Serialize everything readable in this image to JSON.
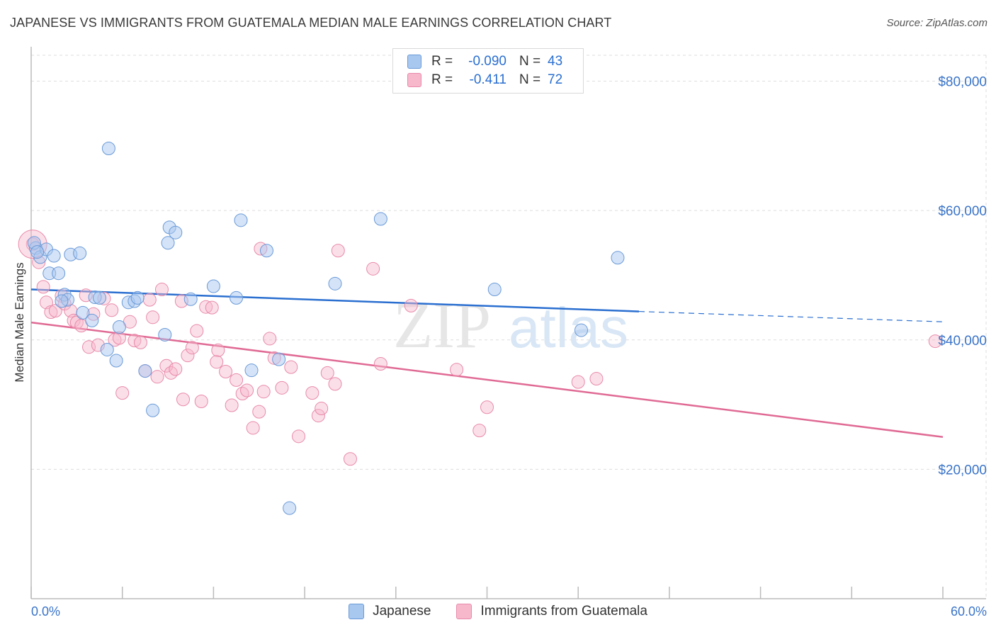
{
  "header": {
    "title": "JAPANESE VS IMMIGRANTS FROM GUATEMALA MEDIAN MALE EARNINGS CORRELATION CHART",
    "source": "Source: ZipAtlas.com"
  },
  "legend": {
    "rows": [
      {
        "r_label": "R =",
        "r_value": "-0.090",
        "n_label": "N =",
        "n_value": "43"
      },
      {
        "r_label": "R =",
        "r_value": "-0.411",
        "n_label": "N =",
        "n_value": "72"
      }
    ]
  },
  "watermark": {
    "part1": "ZIP",
    "part2": "atlas"
  },
  "colors": {
    "japanese_fill": "#a9c8f0",
    "japanese_stroke": "#6a9ad8",
    "japanese_line": "#2a6fd0",
    "guatemala_fill": "#f7b8cc",
    "guatemala_stroke": "#e88aaa",
    "guatemala_line": "#e06a94",
    "axis_text": "#3a74c9",
    "grid": "#dddddd"
  },
  "chart_data": {
    "type": "scatter",
    "title": "JAPANESE VS IMMIGRANTS FROM GUATEMALA MEDIAN MALE EARNINGS CORRELATION CHART",
    "xlabel": "",
    "ylabel": "Median Male Earnings",
    "xlim": [
      0,
      60
    ],
    "ylim": [
      0,
      84000
    ],
    "x_tick_labels": [
      "0.0%",
      "60.0%"
    ],
    "y_ticks": [
      20000,
      40000,
      60000,
      80000
    ],
    "y_tick_labels": [
      "$20,000",
      "$40,000",
      "$60,000",
      "$80,000"
    ],
    "grid": true,
    "legend_position": "top-center",
    "series": [
      {
        "name": "Japanese",
        "r": -0.09,
        "n": 43,
        "trend": {
          "x0": 0,
          "y0": 47800,
          "x1": 40,
          "y1": 44400,
          "dash_to_x": 60,
          "dash_to_y": 42800
        },
        "points": [
          [
            0.3,
            54200
          ],
          [
            0.6,
            52800
          ],
          [
            1.0,
            54000
          ],
          [
            1.2,
            50300
          ],
          [
            1.5,
            53000
          ],
          [
            1.8,
            50300
          ],
          [
            2.2,
            47000
          ],
          [
            2.4,
            46200
          ],
          [
            2.6,
            53200
          ],
          [
            3.2,
            53400
          ],
          [
            3.4,
            44200
          ],
          [
            4.0,
            43000
          ],
          [
            4.2,
            46600
          ],
          [
            4.5,
            46500
          ],
          [
            5.0,
            38500
          ],
          [
            5.1,
            69600
          ],
          [
            5.6,
            36800
          ],
          [
            5.8,
            42000
          ],
          [
            6.4,
            45800
          ],
          [
            6.8,
            46000
          ],
          [
            7.0,
            46500
          ],
          [
            7.5,
            35200
          ],
          [
            8.0,
            29100
          ],
          [
            8.8,
            40800
          ],
          [
            9.0,
            55000
          ],
          [
            9.1,
            57400
          ],
          [
            9.5,
            56600
          ],
          [
            10.5,
            46300
          ],
          [
            12.0,
            48300
          ],
          [
            13.5,
            46500
          ],
          [
            13.8,
            58500
          ],
          [
            14.5,
            35300
          ],
          [
            15.5,
            53800
          ],
          [
            16.3,
            37000
          ],
          [
            17.0,
            14000
          ],
          [
            20.0,
            48700
          ],
          [
            23.0,
            58700
          ],
          [
            30.5,
            47800
          ],
          [
            36.2,
            41500
          ],
          [
            38.6,
            52700
          ],
          [
            0.2,
            55000
          ],
          [
            0.4,
            53600
          ],
          [
            2.0,
            46000
          ]
        ]
      },
      {
        "name": "Immigrants from Guatemala",
        "r": -0.411,
        "n": 72,
        "trend": {
          "x0": 0,
          "y0": 42700,
          "x1": 60,
          "y1": 25000
        },
        "points": [
          [
            0.1,
            54800
          ],
          [
            0.5,
            52000
          ],
          [
            0.8,
            48200
          ],
          [
            1.0,
            45800
          ],
          [
            1.3,
            44300
          ],
          [
            1.6,
            44500
          ],
          [
            2.0,
            46800
          ],
          [
            2.2,
            45600
          ],
          [
            2.6,
            44500
          ],
          [
            2.8,
            43000
          ],
          [
            3.0,
            42700
          ],
          [
            3.3,
            42200
          ],
          [
            3.6,
            46900
          ],
          [
            3.8,
            38900
          ],
          [
            4.1,
            44000
          ],
          [
            4.4,
            39200
          ],
          [
            4.8,
            46400
          ],
          [
            5.3,
            44600
          ],
          [
            5.5,
            40000
          ],
          [
            5.8,
            40300
          ],
          [
            6.0,
            31800
          ],
          [
            6.5,
            42800
          ],
          [
            6.8,
            39900
          ],
          [
            7.2,
            39600
          ],
          [
            7.5,
            35200
          ],
          [
            7.8,
            46200
          ],
          [
            8.0,
            43500
          ],
          [
            8.3,
            34300
          ],
          [
            8.6,
            47800
          ],
          [
            8.9,
            36000
          ],
          [
            9.2,
            34900
          ],
          [
            9.5,
            35500
          ],
          [
            10.0,
            30800
          ],
          [
            10.3,
            37600
          ],
          [
            10.9,
            41400
          ],
          [
            11.2,
            30500
          ],
          [
            11.5,
            45100
          ],
          [
            11.9,
            45000
          ],
          [
            12.3,
            38400
          ],
          [
            12.8,
            35100
          ],
          [
            13.2,
            29900
          ],
          [
            13.5,
            33800
          ],
          [
            13.9,
            31700
          ],
          [
            14.2,
            32200
          ],
          [
            14.6,
            26400
          ],
          [
            15.0,
            28900
          ],
          [
            15.3,
            32000
          ],
          [
            15.7,
            40200
          ],
          [
            16.0,
            37200
          ],
          [
            16.5,
            32600
          ],
          [
            17.1,
            35800
          ],
          [
            17.6,
            25100
          ],
          [
            18.5,
            31800
          ],
          [
            18.9,
            28300
          ],
          [
            19.1,
            29400
          ],
          [
            19.5,
            34900
          ],
          [
            20.0,
            33200
          ],
          [
            21.0,
            21600
          ],
          [
            22.5,
            51000
          ],
          [
            23.0,
            36300
          ],
          [
            25.0,
            45300
          ],
          [
            28.0,
            35400
          ],
          [
            29.5,
            26000
          ],
          [
            30.0,
            29600
          ],
          [
            36.0,
            33500
          ],
          [
            37.2,
            34000
          ],
          [
            59.5,
            39800
          ],
          [
            12.2,
            36600
          ],
          [
            10.6,
            38800
          ],
          [
            15.1,
            54100
          ],
          [
            20.2,
            53800
          ],
          [
            9.9,
            46000
          ]
        ]
      }
    ]
  },
  "bottom_legend": {
    "items": [
      "Japanese",
      "Immigrants from Guatemala"
    ]
  }
}
